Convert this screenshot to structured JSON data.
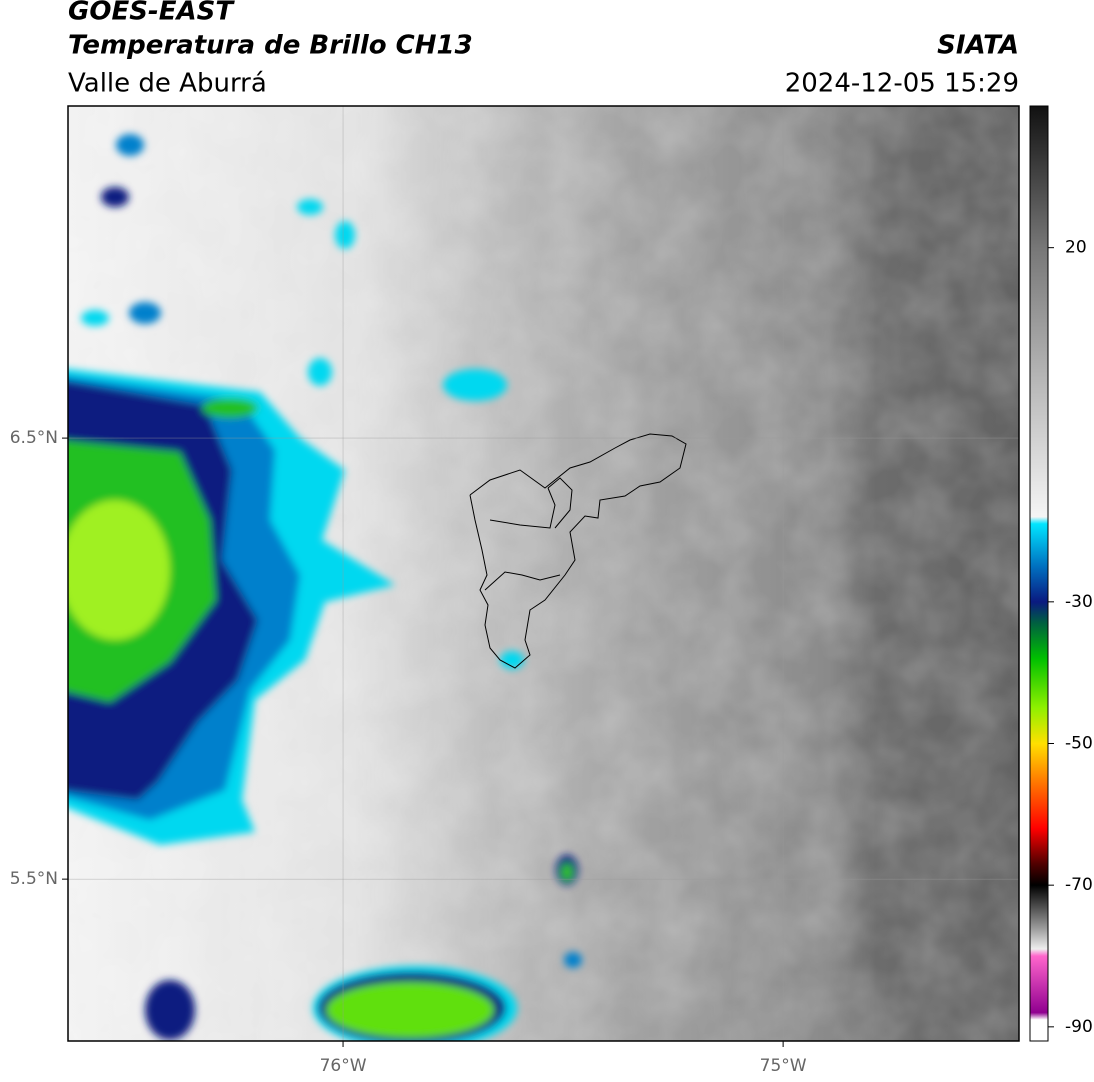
{
  "header": {
    "title": "GOES-EAST",
    "subtitle": "Temperatura de Brillo CH13",
    "agency": "SIATA",
    "region": "Valle de Aburrá",
    "datetime": "2024-12-05 15:29"
  },
  "map": {
    "xlim": [
      -76.625,
      -74.464
    ],
    "ylim": [
      5.133,
      7.253
    ],
    "xticks": [
      {
        "value": -76,
        "label": "76°W"
      },
      {
        "value": -75,
        "label": "75°W"
      }
    ],
    "yticks": [
      {
        "value": 6.5,
        "label": "6.5°N"
      },
      {
        "value": 5.5,
        "label": "5.5°N"
      }
    ],
    "grid": true
  },
  "colorbar": {
    "lim": [
      -92,
      40
    ],
    "ticks": [
      20,
      -30,
      -50,
      -70,
      -90
    ],
    "stops": [
      {
        "value": 40,
        "color": "#111111"
      },
      {
        "value": 20,
        "color": "#777777"
      },
      {
        "value": 0,
        "color": "#bbbbbb"
      },
      {
        "value": -18,
        "color": "#f5f5f5"
      },
      {
        "value": -19,
        "color": "#00e5ff"
      },
      {
        "value": -25,
        "color": "#0070c0"
      },
      {
        "value": -30,
        "color": "#0a1a80"
      },
      {
        "value": -33,
        "color": "#006040"
      },
      {
        "value": -38,
        "color": "#00c000"
      },
      {
        "value": -45,
        "color": "#90f000"
      },
      {
        "value": -50,
        "color": "#ffe000"
      },
      {
        "value": -55,
        "color": "#ff8000"
      },
      {
        "value": -62,
        "color": "#ff0000"
      },
      {
        "value": -67,
        "color": "#500000"
      },
      {
        "value": -70,
        "color": "#000000"
      },
      {
        "value": -76,
        "color": "#999999"
      },
      {
        "value": -79,
        "color": "#eeeeee"
      },
      {
        "value": -80,
        "color": "#ff66cc"
      },
      {
        "value": -88,
        "color": "#900090"
      },
      {
        "value": -89,
        "color": "#ffffff"
      },
      {
        "value": -92,
        "color": "#ffffff"
      }
    ]
  }
}
